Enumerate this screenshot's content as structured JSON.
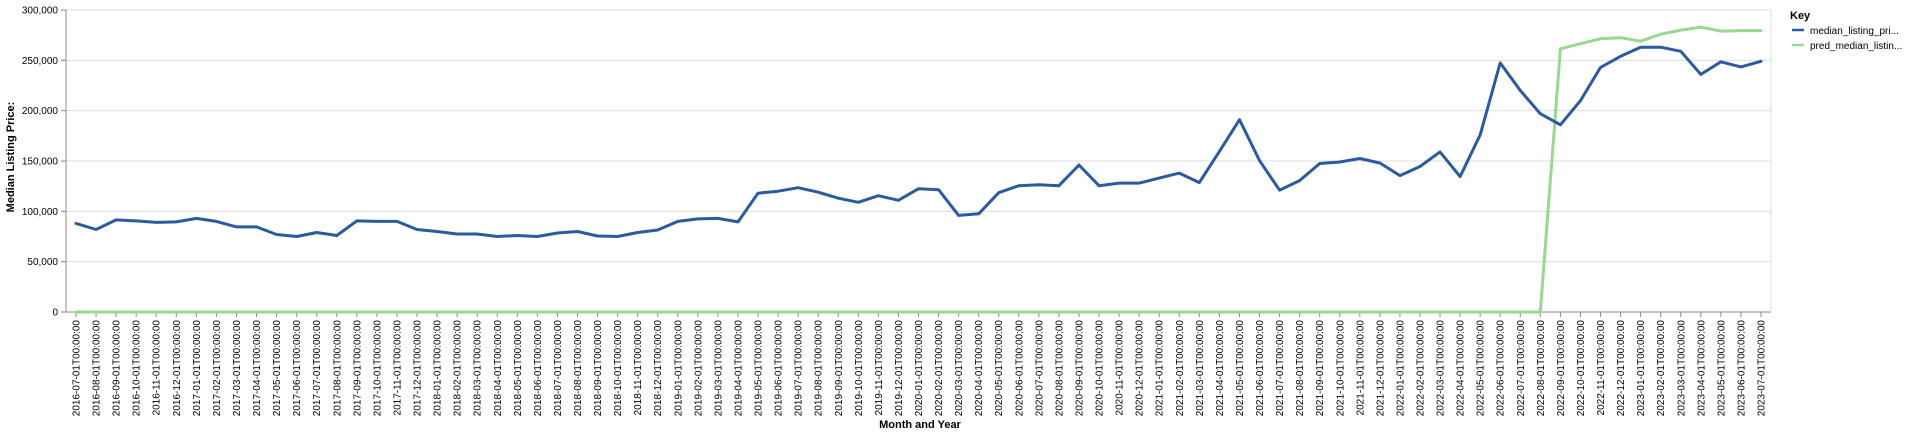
{
  "chart_data": {
    "type": "line",
    "xlabel": "Month and Year",
    "ylabel": "Median Listing Price:",
    "ylim": [
      0,
      300000
    ],
    "y_ticks": [
      "0",
      "50,000",
      "100,000",
      "150,000",
      "200,000",
      "250,000",
      "300,000"
    ],
    "y_tick_values": [
      0,
      50000,
      100000,
      150000,
      200000,
      250000,
      300000
    ],
    "grid": true,
    "legend": {
      "title": "Key",
      "placement": "top-right"
    },
    "x": [
      "2016-07-01T00:00:00",
      "2016-08-01T00:00:00",
      "2016-09-01T00:00:00",
      "2016-10-01T00:00:00",
      "2016-11-01T00:00:00",
      "2016-12-01T00:00:00",
      "2017-01-01T00:00:00",
      "2017-02-01T00:00:00",
      "2017-03-01T00:00:00",
      "2017-04-01T00:00:00",
      "2017-05-01T00:00:00",
      "2017-06-01T00:00:00",
      "2017-07-01T00:00:00",
      "2017-08-01T00:00:00",
      "2017-09-01T00:00:00",
      "2017-10-01T00:00:00",
      "2017-11-01T00:00:00",
      "2017-12-01T00:00:00",
      "2018-01-01T00:00:00",
      "2018-02-01T00:00:00",
      "2018-03-01T00:00:00",
      "2018-04-01T00:00:00",
      "2018-05-01T00:00:00",
      "2018-06-01T00:00:00",
      "2018-07-01T00:00:00",
      "2018-08-01T00:00:00",
      "2018-09-01T00:00:00",
      "2018-10-01T00:00:00",
      "2018-11-01T00:00:00",
      "2018-12-01T00:00:00",
      "2019-01-01T00:00:00",
      "2019-02-01T00:00:00",
      "2019-03-01T00:00:00",
      "2019-04-01T00:00:00",
      "2019-05-01T00:00:00",
      "2019-06-01T00:00:00",
      "2019-07-01T00:00:00",
      "2019-08-01T00:00:00",
      "2019-09-01T00:00:00",
      "2019-10-01T00:00:00",
      "2019-11-01T00:00:00",
      "2019-12-01T00:00:00",
      "2020-01-01T00:00:00",
      "2020-02-01T00:00:00",
      "2020-03-01T00:00:00",
      "2020-04-01T00:00:00",
      "2020-05-01T00:00:00",
      "2020-06-01T00:00:00",
      "2020-07-01T00:00:00",
      "2020-08-01T00:00:00",
      "2020-09-01T00:00:00",
      "2020-10-01T00:00:00",
      "2020-11-01T00:00:00",
      "2020-12-01T00:00:00",
      "2021-01-01T00:00:00",
      "2021-02-01T00:00:00",
      "2021-03-01T00:00:00",
      "2021-04-01T00:00:00",
      "2021-05-01T00:00:00",
      "2021-06-01T00:00:00",
      "2021-07-01T00:00:00",
      "2021-08-01T00:00:00",
      "2021-09-01T00:00:00",
      "2021-10-01T00:00:00",
      "2021-11-01T00:00:00",
      "2021-12-01T00:00:00",
      "2022-01-01T00:00:00",
      "2022-02-01T00:00:00",
      "2022-03-01T00:00:00",
      "2022-04-01T00:00:00",
      "2022-05-01T00:00:00",
      "2022-06-01T00:00:00",
      "2022-07-01T00:00:00",
      "2022-08-01T00:00:00",
      "2022-09-01T00:00:00",
      "2022-10-01T00:00:00",
      "2022-11-01T00:00:00",
      "2022-12-01T00:00:00",
      "2023-01-01T00:00:00",
      "2023-02-01T00:00:00",
      "2023-03-01T00:00:00",
      "2023-04-01T00:00:00",
      "2023-05-01T00:00:00",
      "2023-06-01T00:00:00",
      "2023-07-01T00:00:00"
    ],
    "series": [
      {
        "name": "median_listing_pri...",
        "color": "#2b5a9e",
        "values": [
          88000,
          82000,
          91500,
          90500,
          89000,
          89500,
          93000,
          90000,
          84500,
          84500,
          77000,
          75000,
          79000,
          76000,
          90500,
          90000,
          90000,
          82000,
          80000,
          77500,
          77500,
          75000,
          76000,
          75000,
          78500,
          80000,
          75500,
          75000,
          79000,
          81500,
          90000,
          92500,
          93000,
          89500,
          118000,
          120000,
          123500,
          119000,
          113000,
          109000,
          115500,
          111000,
          122500,
          121500,
          96000,
          97500,
          118500,
          125500,
          126500,
          125500,
          146000,
          125500,
          128000,
          128000,
          133000,
          138000,
          128500,
          159500,
          191000,
          150500,
          121000,
          130500,
          147500,
          149000,
          152500,
          148000,
          135500,
          144500,
          159000,
          134500,
          176000,
          247500,
          220000,
          197000,
          186000,
          210000,
          243000,
          254000,
          263000,
          263000,
          259000,
          236000,
          248500,
          243500,
          249000
        ]
      },
      {
        "name": "pred_median_listin...",
        "color": "#98d890",
        "values": [
          0,
          0,
          0,
          0,
          0,
          0,
          0,
          0,
          0,
          0,
          0,
          0,
          0,
          0,
          0,
          0,
          0,
          0,
          0,
          0,
          0,
          0,
          0,
          0,
          0,
          0,
          0,
          0,
          0,
          0,
          0,
          0,
          0,
          0,
          0,
          0,
          0,
          0,
          0,
          0,
          0,
          0,
          0,
          0,
          0,
          0,
          0,
          0,
          0,
          0,
          0,
          0,
          0,
          0,
          0,
          0,
          0,
          0,
          0,
          0,
          0,
          0,
          0,
          0,
          0,
          0,
          0,
          0,
          0,
          0,
          0,
          0,
          0,
          0,
          261500,
          266500,
          271500,
          272500,
          269000,
          276000,
          280000,
          283000,
          279000,
          279500,
          279500
        ]
      }
    ]
  }
}
